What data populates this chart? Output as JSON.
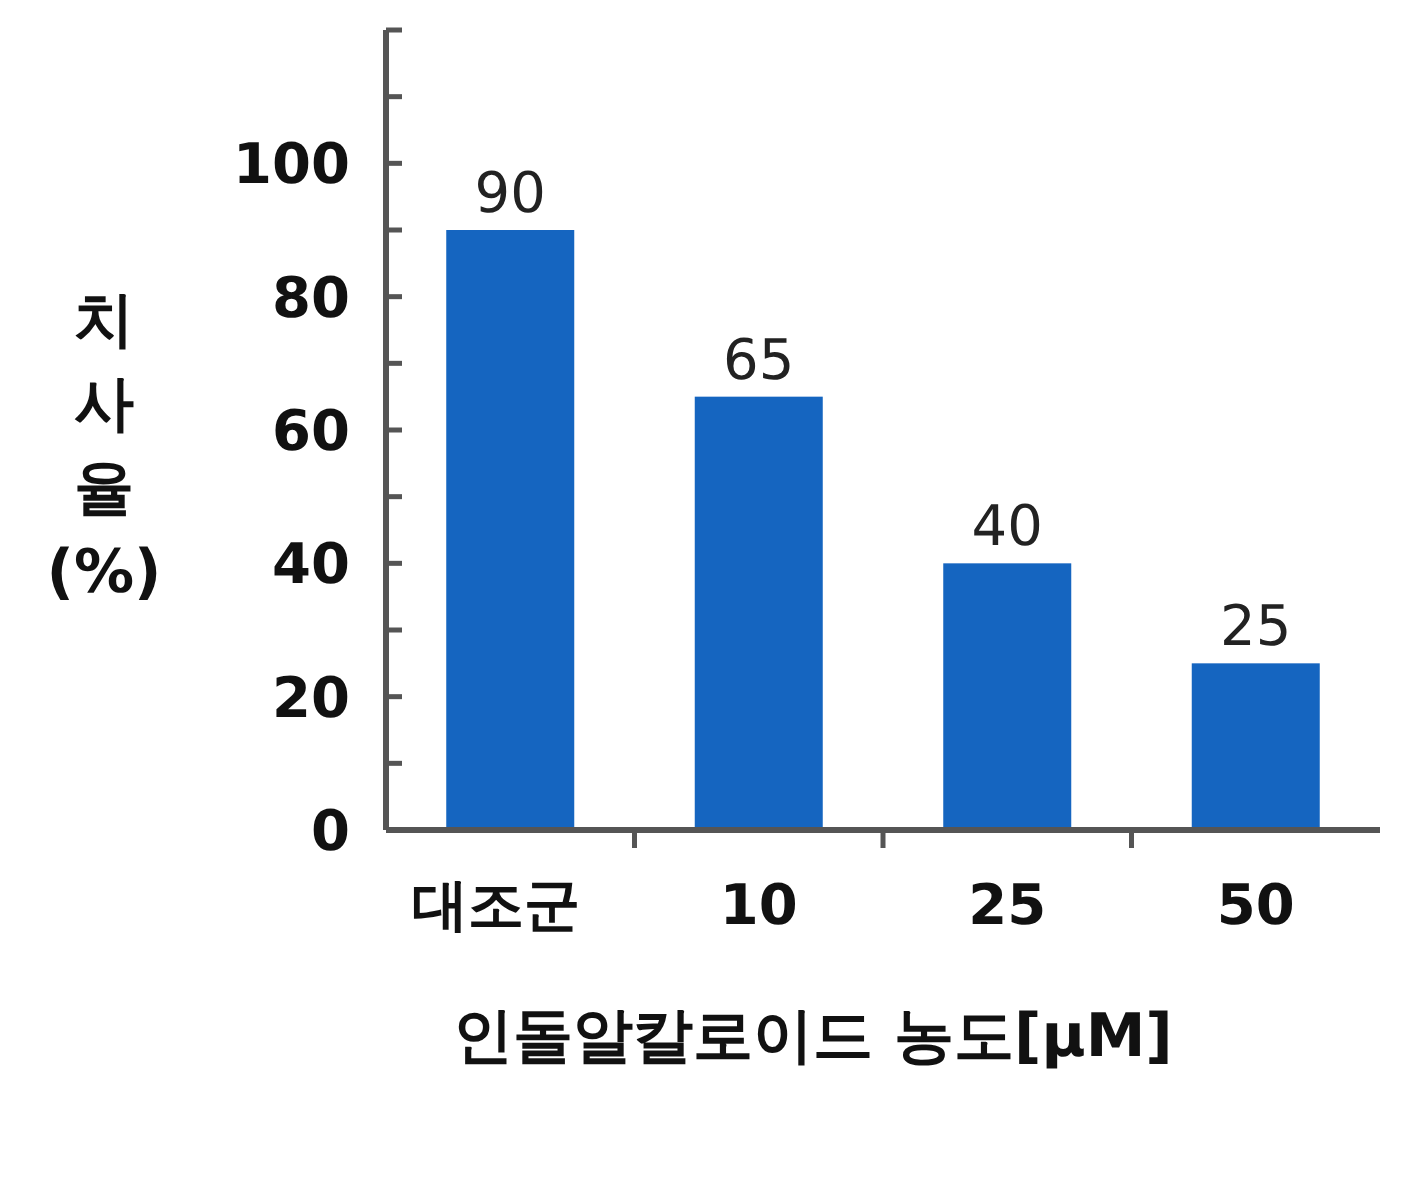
{
  "chart_data": {
    "type": "bar",
    "xlabel": "인돌알칼로이드 농도[μM]",
    "ylabel": "치사율 (%)",
    "categories": [
      "대조군",
      "10",
      "25",
      "50"
    ],
    "values": [
      90,
      65,
      40,
      25
    ],
    "color": "#1565c0",
    "ylim": [
      0,
      120
    ],
    "yticks": [
      0,
      {
        "value": 10,
        "label": null
      },
      20,
      {
        "value": 30,
        "label": null
      },
      40,
      {
        "value": 50,
        "label": null
      },
      60,
      {
        "value": 70,
        "label": null
      },
      80,
      {
        "value": 90,
        "label": null
      },
      100,
      {
        "value": 110,
        "label": null
      },
      {
        "value": 120,
        "label": null
      }
    ],
    "data_labels": true,
    "grid": false
  }
}
